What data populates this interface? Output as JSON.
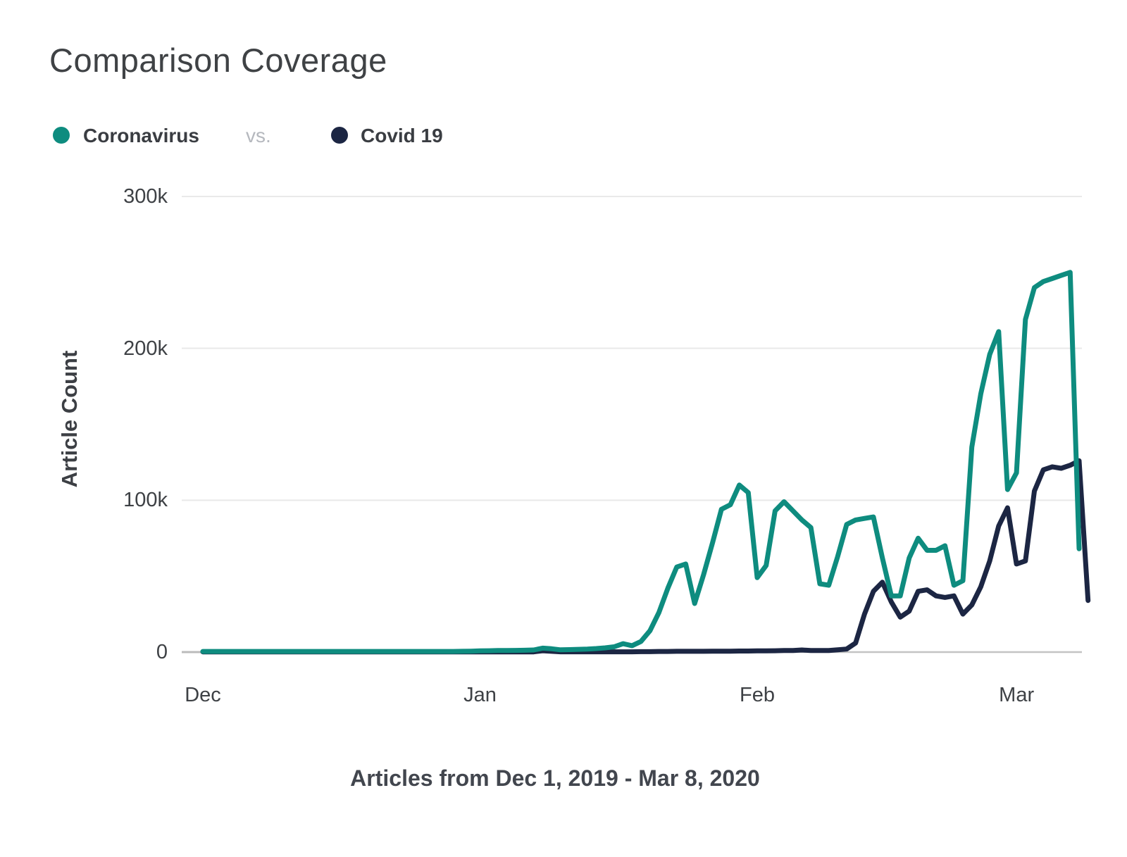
{
  "header": {
    "title": "Comparison Coverage"
  },
  "legend": {
    "series1_label": "Coronavirus",
    "separator": "vs.",
    "series2_label": "Covid 19"
  },
  "colors": {
    "coronavirus": "#0e8c7f",
    "covid19": "#1c2643",
    "gridline": "#e9e9e9",
    "zero_line": "#c3c3c3",
    "axis_stub": "#bbbbbb"
  },
  "chart_data": {
    "type": "line",
    "title": "Comparison Coverage",
    "ylabel": "Article Count",
    "caption": "Articles from Dec 1, 2019 - Mar 8, 2020",
    "x_unit": "days from Dec 1, 2019 to Mar 8, 2020 (daily points)",
    "y_unit": "article count in thousands",
    "ylim": [
      0,
      300
    ],
    "grid": "horizontal",
    "legend_position": "top-left",
    "y_ticks": [
      {
        "label": "0",
        "value": 0
      },
      {
        "label": "100k",
        "value": 100
      },
      {
        "label": "200k",
        "value": 200
      },
      {
        "label": "300k",
        "value": 300
      }
    ],
    "x_ticks": [
      {
        "label": "Dec",
        "day": 0
      },
      {
        "label": "Jan",
        "day": 31
      },
      {
        "label": "Feb",
        "day": 62
      },
      {
        "label": "Mar",
        "day": 91
      }
    ],
    "series": [
      {
        "name": "Coronavirus",
        "color": "#0e8c7f",
        "values": [
          0.4,
          0.4,
          0.4,
          0.4,
          0.4,
          0.4,
          0.4,
          0.4,
          0.4,
          0.4,
          0.4,
          0.4,
          0.4,
          0.4,
          0.4,
          0.4,
          0.4,
          0.4,
          0.4,
          0.4,
          0.4,
          0.4,
          0.4,
          0.4,
          0.4,
          0.4,
          0.4,
          0.4,
          0.4,
          0.5,
          0.6,
          0.8,
          0.9,
          1.0,
          1.0,
          1.1,
          1.2,
          1.4,
          2.6,
          2.2,
          1.5,
          1.6,
          1.8,
          2.0,
          2.3,
          2.8,
          3.5,
          5.5,
          4.2,
          7,
          14,
          26,
          42,
          56,
          58,
          32,
          51,
          72,
          94,
          97,
          110,
          105,
          49,
          57,
          93,
          99,
          93,
          87,
          82,
          45,
          44,
          63,
          84,
          87,
          88,
          89,
          62,
          37,
          37,
          62,
          75,
          67,
          67,
          70,
          44,
          47,
          135,
          170,
          196,
          211,
          107,
          118,
          219,
          240,
          244,
          246,
          248,
          250,
          68
        ]
      },
      {
        "name": "Covid 19",
        "color": "#1c2643",
        "values": [
          0.15,
          0.15,
          0.15,
          0.15,
          0.15,
          0.15,
          0.15,
          0.15,
          0.15,
          0.15,
          0.15,
          0.15,
          0.15,
          0.15,
          0.15,
          0.15,
          0.15,
          0.15,
          0.15,
          0.15,
          0.15,
          0.15,
          0.15,
          0.15,
          0.15,
          0.15,
          0.15,
          0.15,
          0.15,
          0.15,
          0.15,
          0.15,
          0.15,
          0.15,
          0.15,
          0.15,
          0.15,
          0.15,
          0.9,
          0.5,
          0.2,
          0.2,
          0.2,
          0.2,
          0.2,
          0.2,
          0.2,
          0.2,
          0.2,
          0.3,
          0.3,
          0.4,
          0.4,
          0.5,
          0.5,
          0.5,
          0.5,
          0.6,
          0.6,
          0.6,
          0.7,
          0.7,
          0.8,
          0.8,
          0.9,
          1.0,
          1.0,
          1.4,
          1.0,
          1.0,
          1.0,
          1.5,
          2,
          6,
          25,
          40,
          46,
          33,
          23,
          27,
          40,
          41,
          37,
          36,
          37,
          25,
          31,
          43,
          60,
          83,
          95,
          58,
          60,
          106,
          120,
          122,
          121,
          123,
          126,
          34
        ]
      }
    ]
  }
}
